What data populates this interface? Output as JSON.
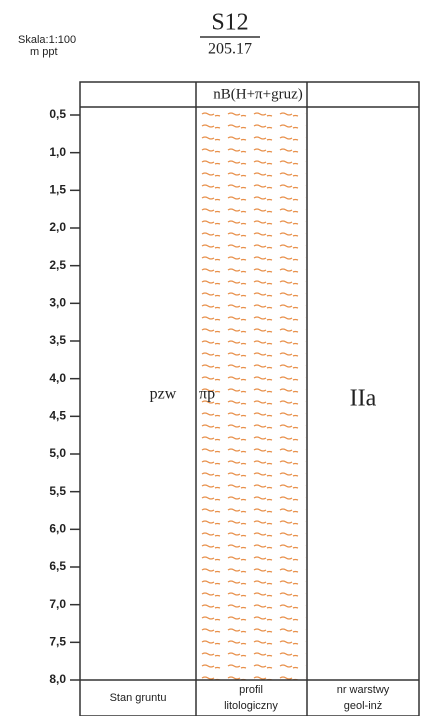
{
  "header": {
    "scale": "Skala:1:100",
    "unit": "m ppt",
    "borehole": "S12",
    "elevation": "205.17"
  },
  "layer": {
    "name": "nB(H+π+gruz)",
    "state": "pzw",
    "soil": "πp",
    "geo_layer": "IIa"
  },
  "depths": [
    "0,5",
    "1,0",
    "1,5",
    "2,0",
    "2,5",
    "3,0",
    "3,5",
    "4,0",
    "4,5",
    "5,0",
    "5,5",
    "6,0",
    "6,5",
    "7,0",
    "7,5",
    "8,0"
  ],
  "footer": {
    "state": "Stan gruntu",
    "profile_1": "profil",
    "profile_2": "litologiczny",
    "layer_1": "nr warstwy",
    "layer_2": "geol-inż"
  }
}
